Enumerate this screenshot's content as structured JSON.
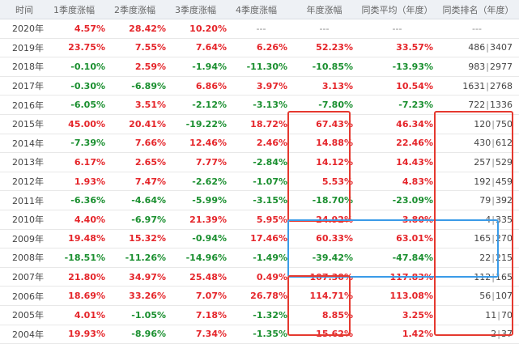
{
  "columns": [
    "时间",
    "1季度涨幅",
    "2季度涨幅",
    "3季度涨幅",
    "4季度涨幅",
    "年度涨幅",
    "同类平均（年度）",
    "同类排名（年度）"
  ],
  "rows": [
    {
      "year": "2020年",
      "q1": "4.57%",
      "q2": "28.42%",
      "q3": "10.20%",
      "q4": "---",
      "annual": "---",
      "avg": "---",
      "rank": "---",
      "rank_total": ""
    },
    {
      "year": "2019年",
      "q1": "23.75%",
      "q2": "7.55%",
      "q3": "7.64%",
      "q4": "6.26%",
      "annual": "52.23%",
      "avg": "33.57%",
      "rank": "486",
      "rank_total": "3407"
    },
    {
      "year": "2018年",
      "q1": "-0.10%",
      "q2": "2.59%",
      "q3": "-1.94%",
      "q4": "-11.30%",
      "annual": "-10.85%",
      "avg": "-13.93%",
      "rank": "983",
      "rank_total": "2977"
    },
    {
      "year": "2017年",
      "q1": "-0.30%",
      "q2": "-6.89%",
      "q3": "6.86%",
      "q4": "3.97%",
      "annual": "3.13%",
      "avg": "10.54%",
      "rank": "1631",
      "rank_total": "2768"
    },
    {
      "year": "2016年",
      "q1": "-6.05%",
      "q2": "3.51%",
      "q3": "-2.12%",
      "q4": "-3.13%",
      "annual": "-7.80%",
      "avg": "-7.23%",
      "rank": "722",
      "rank_total": "1336"
    },
    {
      "year": "2015年",
      "q1": "45.00%",
      "q2": "20.41%",
      "q3": "-19.22%",
      "q4": "18.72%",
      "annual": "67.43%",
      "avg": "46.34%",
      "rank": "120",
      "rank_total": "750"
    },
    {
      "year": "2014年",
      "q1": "-7.39%",
      "q2": "7.66%",
      "q3": "12.46%",
      "q4": "2.46%",
      "annual": "14.88%",
      "avg": "22.46%",
      "rank": "430",
      "rank_total": "612"
    },
    {
      "year": "2013年",
      "q1": "6.17%",
      "q2": "2.65%",
      "q3": "7.77%",
      "q4": "-2.84%",
      "annual": "14.12%",
      "avg": "14.43%",
      "rank": "257",
      "rank_total": "529"
    },
    {
      "year": "2012年",
      "q1": "1.93%",
      "q2": "7.47%",
      "q3": "-2.62%",
      "q4": "-1.07%",
      "annual": "5.53%",
      "avg": "4.83%",
      "rank": "192",
      "rank_total": "459"
    },
    {
      "year": "2011年",
      "q1": "-6.36%",
      "q2": "-4.64%",
      "q3": "-5.99%",
      "q4": "-3.15%",
      "annual": "-18.70%",
      "avg": "-23.09%",
      "rank": "79",
      "rank_total": "392"
    },
    {
      "year": "2010年",
      "q1": "4.40%",
      "q2": "-6.97%",
      "q3": "21.39%",
      "q4": "5.95%",
      "annual": "24.92%",
      "avg": "3.80%",
      "rank": "4",
      "rank_total": "335"
    },
    {
      "year": "2009年",
      "q1": "19.48%",
      "q2": "15.32%",
      "q3": "-0.94%",
      "q4": "17.46%",
      "annual": "60.33%",
      "avg": "63.01%",
      "rank": "165",
      "rank_total": "270"
    },
    {
      "year": "2008年",
      "q1": "-18.51%",
      "q2": "-11.26%",
      "q3": "-14.96%",
      "q4": "-1.49%",
      "annual": "-39.42%",
      "avg": "-47.84%",
      "rank": "22",
      "rank_total": "215"
    },
    {
      "year": "2007年",
      "q1": "21.80%",
      "q2": "34.97%",
      "q3": "25.48%",
      "q4": "0.49%",
      "annual": "107.30%",
      "avg": "117.83%",
      "rank": "112",
      "rank_total": "165"
    },
    {
      "year": "2006年",
      "q1": "18.69%",
      "q2": "33.26%",
      "q3": "7.07%",
      "q4": "26.78%",
      "annual": "114.71%",
      "avg": "113.08%",
      "rank": "56",
      "rank_total": "107"
    },
    {
      "year": "2005年",
      "q1": "4.01%",
      "q2": "-1.05%",
      "q3": "7.18%",
      "q4": "-1.32%",
      "annual": "8.85%",
      "avg": "3.25%",
      "rank": "11",
      "rank_total": "70"
    },
    {
      "year": "2004年",
      "q1": "19.93%",
      "q2": "-8.96%",
      "q3": "7.34%",
      "q4": "-1.35%",
      "annual": "15.62%",
      "avg": "1.42%",
      "rank": "2",
      "rank_total": "37"
    }
  ],
  "colors": {
    "positive": "#e5252a",
    "negative": "#1a8f2f",
    "highlight_red": "#e5392f",
    "highlight_blue": "#3a9be8"
  }
}
